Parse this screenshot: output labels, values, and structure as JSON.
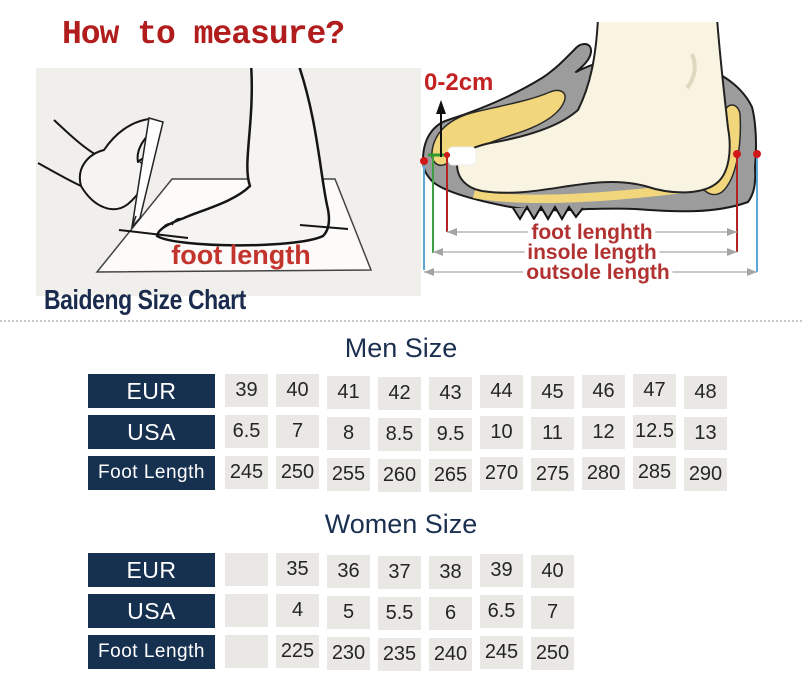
{
  "page": {
    "title": "How to measure?"
  },
  "left_illustration": {
    "label": "foot length"
  },
  "right_illustration": {
    "toe_gap_label": "0-2cm",
    "dimension_labels": [
      "foot lenghth",
      "insole length",
      "outsole length"
    ]
  },
  "size_chart": {
    "brand_heading": "Baideng Size Chart",
    "men": {
      "heading": "Men Size",
      "rows": [
        {
          "label": "EUR",
          "values": [
            "39",
            "40",
            "41",
            "42",
            "43",
            "44",
            "45",
            "46",
            "47",
            "48"
          ]
        },
        {
          "label": "USA",
          "values": [
            "6.5",
            "7",
            "8",
            "8.5",
            "9.5",
            "10",
            "11",
            "12",
            "12.5",
            "13"
          ]
        },
        {
          "label": "Foot Length",
          "values": [
            "245",
            "250",
            "255",
            "260",
            "265",
            "270",
            "275",
            "280",
            "285",
            "290"
          ]
        }
      ]
    },
    "women": {
      "heading": "Women Size",
      "rows": [
        {
          "label": "EUR",
          "values": [
            "",
            "35",
            "36",
            "37",
            "38",
            "39",
            "40"
          ]
        },
        {
          "label": "USA",
          "values": [
            "",
            "4",
            "5",
            "5.5",
            "6",
            "6.5",
            "7"
          ]
        },
        {
          "label": "Foot Length",
          "values": [
            "",
            "225",
            "230",
            "235",
            "240",
            "245",
            "250"
          ]
        }
      ]
    }
  },
  "colors": {
    "title_red": "#b11c1c",
    "label_red": "#b23232",
    "navy_header": "#16304f",
    "cell_gray": "#e9e8e5",
    "insole_yellow": "#f2d67c",
    "shoe_gray": "#9c9c9c",
    "foot_cream": "#f8f4e1"
  }
}
